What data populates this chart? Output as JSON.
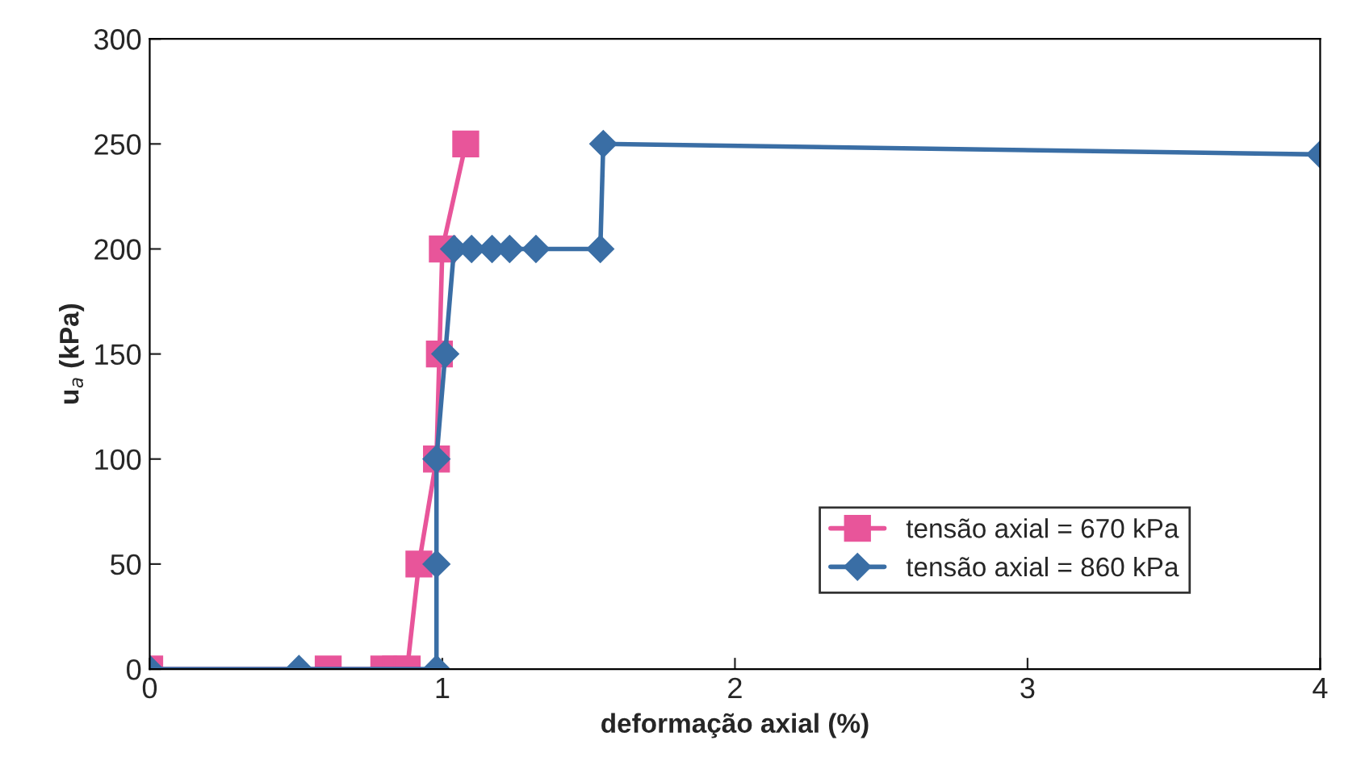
{
  "chart_data": {
    "type": "line",
    "xlabel": "deformação axial (%)",
    "ylabel": "u$_{a}$ (kPa)",
    "xlim": [
      0,
      4
    ],
    "xticks": [
      0,
      1,
      2,
      3,
      4
    ],
    "ylim": [
      0,
      300
    ],
    "yticks": [
      0,
      50,
      100,
      150,
      200,
      250,
      300
    ],
    "grid": false,
    "legend": "lower right",
    "series": [
      {
        "name": "tensão axial = 670 kPa",
        "color": "#e8559a",
        "marker": "square",
        "x": [
          0,
          0.61,
          0.8,
          0.84,
          0.88,
          0.92,
          0.98,
          0.99,
          1.0,
          1.08
        ],
        "values": [
          0,
          0,
          0,
          0,
          0,
          50,
          100,
          150,
          200,
          250
        ]
      },
      {
        "name": "tensão axial = 860 kPa",
        "color": "#3a6ea5",
        "marker": "diamond",
        "x": [
          0,
          0.51,
          0.98,
          0.98,
          0.98,
          1.01,
          1.04,
          1.1,
          1.17,
          1.23,
          1.32,
          1.54,
          1.55,
          4.0
        ],
        "values": [
          0,
          0,
          0,
          50,
          100,
          150,
          200,
          200,
          200,
          200,
          200,
          200,
          250,
          245
        ]
      }
    ]
  }
}
